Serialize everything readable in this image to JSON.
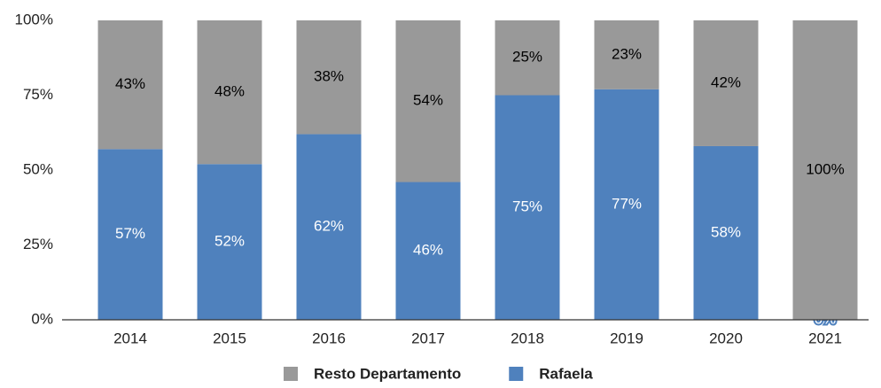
{
  "chart_data": {
    "type": "stacked_bar_100",
    "categories": [
      "2014",
      "2015",
      "2016",
      "2017",
      "2018",
      "2019",
      "2020",
      "2021"
    ],
    "series": [
      {
        "name": "Resto Departamento",
        "color": "#999999",
        "label_color": "#000000",
        "values": [
          43,
          48,
          38,
          54,
          25,
          23,
          42,
          100
        ],
        "value_labels": [
          "43%",
          "48%",
          "38%",
          "54%",
          "25%",
          "23%",
          "42%",
          "100%"
        ]
      },
      {
        "name": "Rafaela",
        "color": "#4f81bd",
        "label_color": "#ffffff",
        "values": [
          57,
          52,
          62,
          46,
          75,
          77,
          58,
          0
        ],
        "value_labels": [
          "57%",
          "52%",
          "62%",
          "46%",
          "75%",
          "77%",
          "58%",
          "0%"
        ]
      }
    ],
    "ylim": [
      0,
      100
    ],
    "yticks": [
      {
        "value": 0,
        "label": "0%"
      },
      {
        "value": 25,
        "label": "25%"
      },
      {
        "value": 50,
        "label": "50%"
      },
      {
        "value": 75,
        "label": "75%"
      },
      {
        "value": 100,
        "label": "100%"
      }
    ],
    "grid": false,
    "legend": "bottom"
  }
}
